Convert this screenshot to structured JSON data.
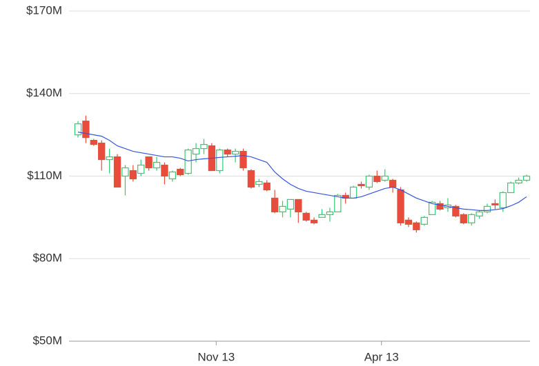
{
  "chart_data": {
    "type": "candlestick",
    "categories": [
      null,
      null,
      null,
      null,
      null,
      null,
      null,
      null,
      null,
      null,
      null,
      null,
      null,
      null,
      null,
      null,
      null,
      null,
      "Nov 13",
      null,
      null,
      null,
      null,
      null,
      null,
      null,
      null,
      null,
      null,
      null,
      null,
      null,
      null,
      null,
      null,
      null,
      null,
      null,
      null,
      "Apr 13",
      null,
      null,
      null,
      null,
      null,
      null,
      null,
      null,
      null,
      null,
      null,
      null,
      null,
      null,
      null,
      null,
      null,
      null
    ],
    "open": [
      125,
      130,
      123,
      122,
      116,
      117,
      110,
      112,
      111,
      117,
      113,
      114,
      109,
      112.5,
      111,
      118,
      120,
      121,
      112,
      119.5,
      118,
      119,
      112,
      107,
      107.5,
      102,
      97,
      98,
      101.5,
      96.5,
      94,
      95,
      96,
      97,
      103,
      102,
      107,
      106,
      110,
      108.5,
      108.5,
      105,
      94,
      93,
      92.5,
      96,
      100,
      98.5,
      99,
      96,
      93,
      95.5,
      97,
      100,
      98.5,
      104,
      107.5,
      108.5
    ],
    "high": [
      130,
      132,
      123.5,
      123,
      120,
      118,
      114,
      114,
      116,
      117,
      117,
      115,
      112,
      113,
      120,
      122,
      123.5,
      122,
      120,
      120,
      120,
      120,
      112.5,
      109,
      108.5,
      105,
      101,
      101.5,
      101.5,
      97,
      95,
      98,
      98.5,
      103.5,
      104,
      106.5,
      108,
      110.5,
      112,
      112.5,
      109,
      106,
      95,
      93.5,
      95.5,
      101,
      101,
      102,
      99.5,
      96.5,
      96.5,
      97.5,
      100,
      101.5,
      104.5,
      108,
      109.5,
      110.5
    ],
    "low": [
      124,
      122,
      121,
      112,
      111,
      106,
      103,
      108,
      110,
      112,
      112,
      107,
      108,
      110,
      110.5,
      115,
      118,
      112,
      111,
      117,
      115,
      112,
      105.5,
      106,
      104.5,
      96.5,
      95,
      95,
      93,
      93.5,
      92.5,
      95,
      93.5,
      97,
      100,
      102,
      105.5,
      105,
      107.5,
      108,
      104,
      92,
      91.5,
      89.5,
      92,
      96,
      97.5,
      97,
      95,
      92.5,
      92,
      94.5,
      96.5,
      98,
      97,
      104,
      107,
      108
    ],
    "close": [
      129,
      124,
      121.5,
      116,
      117,
      106,
      113,
      109,
      114,
      113,
      115,
      110,
      111.5,
      110.5,
      119.5,
      120,
      121.5,
      112,
      119.5,
      118,
      119,
      113,
      106,
      108,
      105,
      97,
      99,
      101.5,
      97,
      94,
      93,
      96,
      97,
      103,
      102,
      106,
      106.5,
      110,
      108,
      110,
      106,
      93,
      92.5,
      90.5,
      95,
      100.5,
      98,
      99.5,
      95.5,
      93,
      96,
      97,
      99,
      99.5,
      104,
      107.5,
      108.5,
      110
    ],
    "up_color": "#2ecc71",
    "down_color": "#e74c3c",
    "moving_average": {
      "color": "#3355dd",
      "values": [
        126,
        125.5,
        125,
        124.5,
        123,
        121,
        120,
        119,
        118.5,
        118,
        117.5,
        117,
        117,
        116.5,
        115.5,
        116,
        116.3,
        116.5,
        116.8,
        117,
        117.2,
        117.5,
        117,
        116,
        115,
        111.5,
        109,
        107,
        105.5,
        104.5,
        104,
        103.5,
        103,
        102.5,
        102,
        102,
        102.5,
        103.5,
        104.5,
        105.5,
        106,
        105,
        103.5,
        102,
        101,
        100,
        99.5,
        99,
        98.5,
        98,
        97.8,
        97.5,
        97.5,
        97.8,
        98.2,
        99.2,
        100.5,
        102.5
      ]
    },
    "ylim": [
      50,
      170
    ],
    "yticks": [
      {
        "value": 50,
        "label": "$50M"
      },
      {
        "value": 80,
        "label": "$80M"
      },
      {
        "value": 110,
        "label": "$110M"
      },
      {
        "value": 140,
        "label": "$140M"
      },
      {
        "value": 170,
        "label": "$170M"
      }
    ],
    "grid": true
  }
}
